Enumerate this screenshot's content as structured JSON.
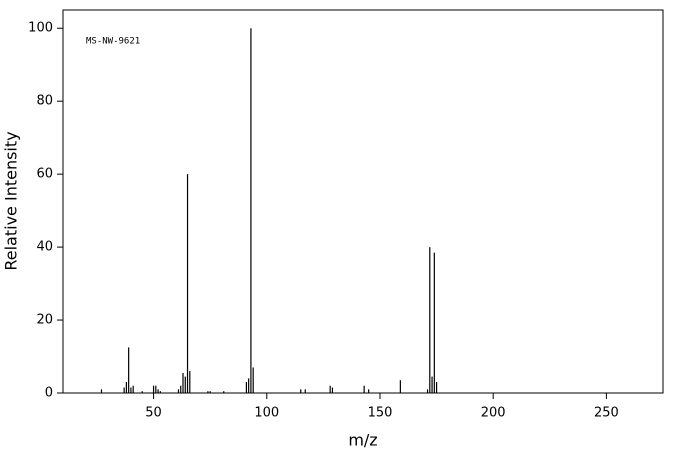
{
  "chart_data": {
    "type": "bar",
    "annotation": "MS-NW-9621",
    "x_label": "m/z",
    "y_label": "Relative Intensity",
    "x": [
      27,
      37,
      38,
      39,
      40,
      41,
      45,
      50,
      51,
      52,
      53,
      61,
      62,
      63,
      64,
      65,
      66,
      74,
      75,
      81,
      91,
      92,
      93,
      94,
      115,
      117,
      128,
      129,
      143,
      145,
      159,
      171,
      172,
      173,
      174,
      175
    ],
    "values": [
      1,
      1.5,
      3,
      12.5,
      1.5,
      2,
      0.5,
      2,
      2,
      1,
      0.5,
      1,
      2,
      5.5,
      4.5,
      60,
      6,
      0.5,
      0.5,
      0.5,
      3,
      4,
      100,
      7,
      1,
      1,
      2,
      1.5,
      2,
      1,
      3.5,
      1,
      40,
      4.5,
      38.5,
      3
    ],
    "color": "#000000",
    "xlim": [
      10,
      275
    ],
    "xticks": [
      50,
      100,
      150,
      200,
      250
    ],
    "ylim": [
      0,
      105
    ],
    "yticks": [
      0,
      20,
      40,
      60,
      80,
      100
    ]
  }
}
